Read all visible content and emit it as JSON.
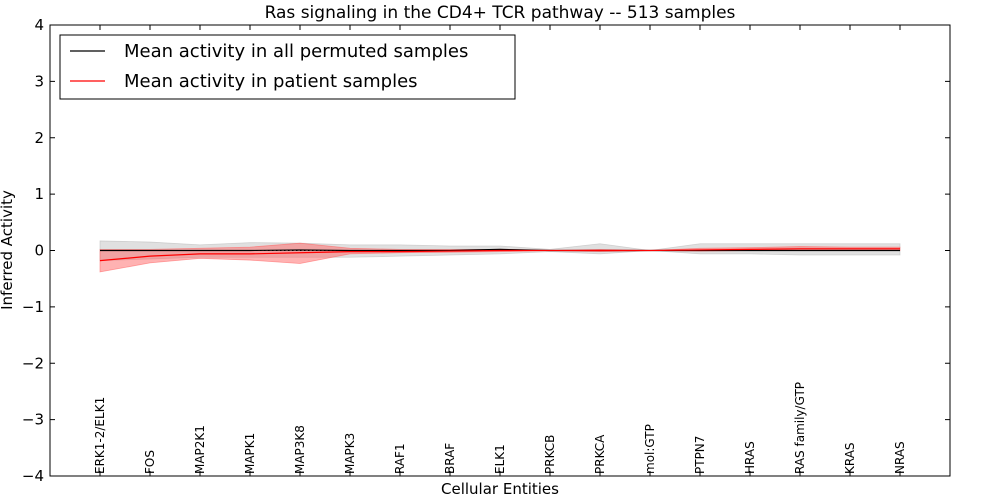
{
  "chart_data": {
    "type": "line",
    "title": "Ras signaling in the CD4+ TCR pathway -- 513 samples",
    "xlabel": "Cellular Entities",
    "ylabel": "Inferred Activity",
    "ylim": [
      -4,
      4
    ],
    "yticks": [
      4,
      3,
      2,
      1,
      0,
      -1,
      -2,
      -3,
      -4
    ],
    "ytick_labels": [
      "4",
      "3",
      "2",
      "1",
      "0",
      "−1",
      "−2",
      "−3",
      "−4"
    ],
    "categories": [
      "ERK1-2/ELK1",
      "FOS",
      "MAP2K1",
      "MAPK1",
      "MAP3K8",
      "MAPK3",
      "RAF1",
      "BRAF",
      "ELK1",
      "PRKCB",
      "PRKCA",
      "mol:GTP",
      "PTPN7",
      "HRAS",
      "RAS family/GTP",
      "KRAS",
      "NRAS"
    ],
    "legend_position": "top-left",
    "reference_line": 0,
    "series": [
      {
        "name": "Mean activity in all permuted samples",
        "color": "#000000",
        "band_color": "#bbbbbb",
        "values": [
          0.0,
          0.0,
          0.0,
          0.0,
          0.01,
          0.0,
          0.0,
          0.0,
          0.02,
          0.0,
          0.0,
          0.0,
          0.0,
          0.0,
          0.0,
          0.0,
          0.0
        ],
        "lower": [
          -0.18,
          -0.15,
          -0.12,
          -0.12,
          -0.12,
          -0.12,
          -0.1,
          -0.08,
          -0.06,
          -0.02,
          -0.06,
          0.0,
          -0.06,
          -0.06,
          -0.08,
          -0.08,
          -0.08
        ],
        "upper": [
          0.17,
          0.15,
          0.1,
          0.14,
          0.13,
          0.1,
          0.1,
          0.08,
          0.08,
          0.02,
          0.12,
          0.0,
          0.12,
          0.12,
          0.12,
          0.12,
          0.12
        ]
      },
      {
        "name": "Mean activity in patient samples",
        "color": "#ff0000",
        "band_color": "#ff6666",
        "values": [
          -0.18,
          -0.1,
          -0.06,
          -0.06,
          -0.04,
          -0.02,
          -0.02,
          -0.01,
          0.0,
          0.0,
          0.0,
          0.0,
          0.01,
          0.02,
          0.03,
          0.03,
          0.03
        ],
        "lower": [
          -0.38,
          -0.22,
          -0.14,
          -0.17,
          -0.23,
          -0.06,
          -0.04,
          -0.03,
          -0.02,
          0.0,
          -0.02,
          0.0,
          -0.01,
          0.0,
          0.0,
          0.0,
          0.0
        ],
        "upper": [
          0.02,
          0.02,
          0.04,
          0.06,
          0.13,
          0.04,
          0.02,
          0.02,
          0.02,
          0.0,
          0.02,
          0.0,
          0.04,
          0.05,
          0.07,
          0.06,
          0.06
        ]
      }
    ]
  }
}
